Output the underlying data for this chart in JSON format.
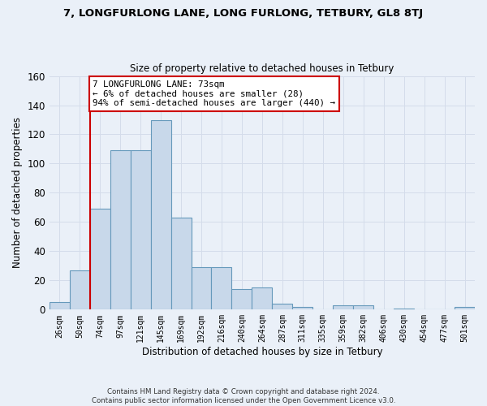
{
  "title1": "7, LONGFURLONG LANE, LONG FURLONG, TETBURY, GL8 8TJ",
  "title2": "Size of property relative to detached houses in Tetbury",
  "xlabel": "Distribution of detached houses by size in Tetbury",
  "ylabel": "Number of detached properties",
  "bar_labels": [
    "26sqm",
    "50sqm",
    "74sqm",
    "97sqm",
    "121sqm",
    "145sqm",
    "169sqm",
    "192sqm",
    "216sqm",
    "240sqm",
    "264sqm",
    "287sqm",
    "311sqm",
    "335sqm",
    "359sqm",
    "382sqm",
    "406sqm",
    "430sqm",
    "454sqm",
    "477sqm",
    "501sqm"
  ],
  "bar_values": [
    5,
    27,
    69,
    109,
    109,
    130,
    63,
    29,
    29,
    14,
    15,
    4,
    2,
    0,
    3,
    3,
    0,
    1,
    0,
    0,
    2
  ],
  "bar_color": "#c8d8ea",
  "bar_edge_color": "#6699bb",
  "grid_color": "#d4dcea",
  "background_color": "#eaf0f8",
  "annotation_text": "7 LONGFURLONG LANE: 73sqm\n← 6% of detached houses are smaller (28)\n94% of semi-detached houses are larger (440) →",
  "annotation_box_color": "#ffffff",
  "annotation_border_color": "#cc0000",
  "red_line_bar_index": 1.5,
  "ylim": [
    0,
    160
  ],
  "yticks": [
    0,
    20,
    40,
    60,
    80,
    100,
    120,
    140,
    160
  ],
  "footer": "Contains HM Land Registry data © Crown copyright and database right 2024.\nContains public sector information licensed under the Open Government Licence v3.0."
}
